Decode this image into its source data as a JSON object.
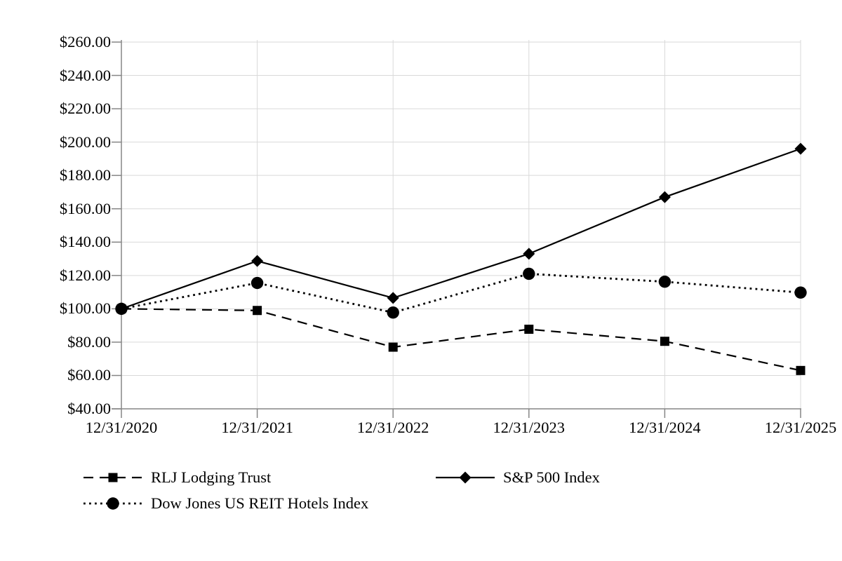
{
  "chart_data": {
    "type": "line",
    "title": "",
    "categories": [
      "12/31/2020",
      "12/31/2021",
      "12/31/2022",
      "12/31/2023",
      "12/31/2024",
      "12/31/2025"
    ],
    "series": [
      {
        "name": "RLJ Lodging Trust",
        "marker": "square",
        "line_style": "dashed",
        "values": [
          100.0,
          99.0,
          77.0,
          87.75,
          80.5,
          63.0
        ]
      },
      {
        "name": "S&P 500 Index",
        "marker": "diamond",
        "line_style": "solid",
        "values": [
          100.0,
          128.7,
          106.5,
          133.0,
          167.0,
          196.0
        ]
      },
      {
        "name": "Dow Jones US REIT Hotels Index",
        "marker": "circle",
        "line_style": "dotted",
        "values": [
          100.0,
          115.5,
          97.75,
          121.0,
          116.25,
          109.75
        ]
      }
    ],
    "y_axis": {
      "min": 40,
      "max": 260,
      "step": 20,
      "tick_labels": [
        "$40.00",
        "$60.00",
        "$80.00",
        "$100.00",
        "$120.00",
        "$140.00",
        "$160.00",
        "$180.00",
        "$200.00",
        "$220.00",
        "$240.00",
        "$260.00"
      ]
    },
    "x_axis": {
      "tick_labels": [
        "12/31/2020",
        "12/31/2021",
        "12/31/2022",
        "12/31/2023",
        "12/31/2024",
        "12/31/2025"
      ]
    },
    "grid": true,
    "legend_position": "bottom-left",
    "colors": {
      "series": "#000000",
      "gridline": "#d9d9d9",
      "axis": "#868686"
    }
  }
}
